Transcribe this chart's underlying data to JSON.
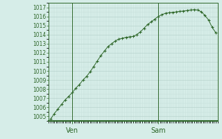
{
  "background_color": "#d6ede8",
  "grid_major_color": "#b8d4ce",
  "grid_minor_color": "#c8e2dc",
  "line_color": "#2d6628",
  "marker_color": "#2d6628",
  "ylim": [
    1004.5,
    1017.5
  ],
  "yticks": [
    1005,
    1006,
    1007,
    1008,
    1009,
    1010,
    1011,
    1012,
    1013,
    1014,
    1015,
    1016,
    1017
  ],
  "x_values": [
    0,
    1,
    2,
    3,
    4,
    5,
    6,
    7,
    8,
    9,
    10,
    11,
    12,
    13,
    14,
    15,
    16,
    17,
    18,
    19,
    20,
    21,
    22,
    23,
    24,
    25,
    26,
    27,
    28,
    29,
    30,
    31,
    32,
    33,
    34,
    35,
    36,
    37,
    38,
    39,
    40,
    41,
    42,
    43,
    44,
    45,
    46
  ],
  "y_values": [
    1004.7,
    1005.3,
    1005.8,
    1006.3,
    1006.8,
    1007.2,
    1007.6,
    1008.1,
    1008.5,
    1009.0,
    1009.4,
    1009.9,
    1010.5,
    1011.1,
    1011.7,
    1012.2,
    1012.7,
    1013.0,
    1013.3,
    1013.5,
    1013.6,
    1013.7,
    1013.75,
    1013.8,
    1014.0,
    1014.3,
    1014.7,
    1015.1,
    1015.4,
    1015.7,
    1016.0,
    1016.2,
    1016.35,
    1016.4,
    1016.45,
    1016.5,
    1016.55,
    1016.6,
    1016.65,
    1016.7,
    1016.75,
    1016.7,
    1016.5,
    1016.1,
    1015.6,
    1014.8,
    1014.2
  ],
  "xtick_positions": [
    6,
    30
  ],
  "xtick_labels": [
    "Ven",
    "Sam"
  ],
  "vline_positions": [
    6,
    30
  ],
  "ytick_fontsize": 5.5,
  "xtick_fontsize": 7.0
}
